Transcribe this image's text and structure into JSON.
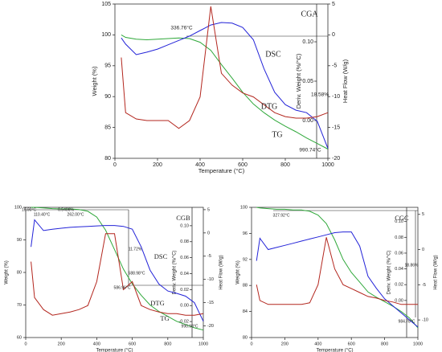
{
  "chart_data": [
    {
      "type": "line",
      "title": "CGA",
      "xlabel": "Temperature (°C)",
      "ylabel": "Weight (%)",
      "y2label": "Heat Flow (W/g)",
      "y3label": "Deriv. Weight (%/°C)",
      "x": [
        30,
        50,
        100,
        150,
        200,
        250,
        300,
        350,
        400,
        450,
        500,
        550,
        600,
        650,
        700,
        750,
        800,
        850,
        900,
        950,
        1000
      ],
      "xlim": [
        0,
        1000
      ],
      "xticks": [
        0,
        200,
        400,
        600,
        800,
        1000
      ],
      "ylim": [
        80,
        105
      ],
      "yticks": [
        80,
        85,
        90,
        95,
        100,
        105
      ],
      "y2lim": [
        -20,
        5
      ],
      "y2ticks": [
        5,
        0,
        -5,
        -10,
        -15,
        -20
      ],
      "y3lim": [
        -0.048,
        0.148
      ],
      "y3ticks": [
        {
          "value": 0.1,
          "label": "0.10"
        },
        {
          "value": 0.05,
          "label": "0.05"
        },
        {
          "value": 0,
          "label": "0.00"
        }
      ],
      "series": [
        {
          "name": "TG",
          "color": "#2fa83a",
          "axis": "y",
          "values": [
            100,
            99.6,
            99.3,
            99.2,
            99.3,
            99.4,
            99.5,
            99.4,
            98.8,
            97.5,
            95.2,
            93,
            90.7,
            88.8,
            87.4,
            86.2,
            85.2,
            84.3,
            83.3,
            82.4,
            81.5
          ]
        },
        {
          "name": "DSC",
          "color": "#2323d8",
          "axis": "y2",
          "values": [
            -0.5,
            -1.5,
            -3.2,
            -2.8,
            -2.3,
            -1.6,
            -0.9,
            -0.2,
            0.7,
            1.6,
            2.0,
            1.9,
            1.2,
            -0.8,
            -5.5,
            -9.3,
            -11.3,
            -12.2,
            -12.6,
            -14,
            -18.4
          ]
        },
        {
          "name": "DTG",
          "color": "#b3261e",
          "axis": "y3",
          "values": [
            0.08,
            0.01,
            0.002,
            0,
            0,
            0,
            -0.01,
            0,
            0.03,
            0.145,
            0.06,
            0.045,
            0.035,
            0.03,
            0.02,
            0.01,
            0.005,
            0.003,
            0.003,
            0.005,
            0.01
          ]
        }
      ],
      "annotations": [
        "336.76°C",
        "18.58%",
        "990.74°C"
      ]
    },
    {
      "type": "line",
      "title": "CGB",
      "xlabel": "Temperature (°C)",
      "ylabel": "Weight (%)",
      "y2label": "Heat Flow (W/g)",
      "y3label": "Deriv. Weight (%/°C)",
      "x": [
        30,
        50,
        100,
        150,
        200,
        250,
        300,
        350,
        400,
        450,
        500,
        550,
        600,
        650,
        700,
        750,
        800,
        850,
        900,
        950,
        1000
      ],
      "xlim": [
        0,
        1000
      ],
      "xticks": [
        0,
        200,
        400,
        600,
        800,
        1000
      ],
      "ylim": [
        60,
        100
      ],
      "yticks": [
        60,
        70,
        80,
        90,
        100
      ],
      "y2lim": [
        -22.5,
        5.5
      ],
      "y2ticks": [
        5,
        0,
        -5,
        -10,
        -15,
        -20
      ],
      "y3lim": [
        -0.04,
        0.123
      ],
      "y3ticks": [
        {
          "value": 0.1,
          "label": "0.10"
        },
        {
          "value": 0.08,
          "label": "0.08"
        },
        {
          "value": 0.06,
          "label": "0.06"
        },
        {
          "value": 0.04,
          "label": "0.04"
        },
        {
          "value": 0.02,
          "label": "0.02"
        },
        {
          "value": 0,
          "label": "0.00"
        },
        {
          "value": -0.02,
          "label": "-0.02"
        }
      ],
      "series": [
        {
          "name": "TG",
          "color": "#2fa83a",
          "axis": "y",
          "values": [
            100,
            100,
            99.8,
            99.6,
            99.5,
            99.5,
            99.3,
            98.8,
            97,
            93,
            87,
            81,
            76.5,
            73,
            70,
            68,
            66.5,
            65,
            64,
            63,
            62.3
          ]
        },
        {
          "name": "DSC",
          "color": "#2323d8",
          "axis": "y2",
          "values": [
            -3,
            2.8,
            0.5,
            0.8,
            1.0,
            1.2,
            1.3,
            1.4,
            1.5,
            1.6,
            1.6,
            1.4,
            0.8,
            -3,
            -8,
            -11,
            -12.5,
            -13,
            -13.6,
            -15,
            -19
          ]
        },
        {
          "name": "DTG",
          "color": "#b3261e",
          "axis": "y3",
          "values": [
            0.055,
            0.01,
            -0.005,
            -0.012,
            -0.01,
            -0.008,
            -0.005,
            0,
            0.03,
            0.09,
            0.09,
            0.02,
            0.03,
            0,
            -0.005,
            -0.008,
            -0.01,
            -0.01,
            -0.012,
            -0.012,
            -0.01
          ]
        }
      ],
      "annotations": [
        "16.90°C",
        "0.5406%",
        "110.40°C",
        "262.00°C",
        "11.72%",
        "588.98°C",
        "586.96°C",
        "990.98°C"
      ]
    },
    {
      "type": "line",
      "title": "CGC",
      "xlabel": "Temperature (°C)",
      "ylabel": "Weight (%)",
      "y2label": "Heat Flow (W/g)",
      "y3label": "Deriv. Weight (%/°C)",
      "x": [
        30,
        50,
        100,
        150,
        200,
        250,
        300,
        350,
        400,
        450,
        500,
        550,
        600,
        650,
        700,
        750,
        800,
        850,
        900,
        950,
        1000
      ],
      "xlim": [
        0,
        1000
      ],
      "xticks": [
        0,
        200,
        400,
        600,
        800,
        1000
      ],
      "ylim": [
        80,
        100
      ],
      "yticks": [
        80,
        84,
        88,
        92,
        96,
        100
      ],
      "y2lim": [
        -12.5,
        6
      ],
      "y2ticks": [
        5,
        0,
        -5,
        -10
      ],
      "y3lim": [
        -0.047,
        0.118
      ],
      "y3ticks": [
        {
          "value": 0.1,
          "label": "0.10"
        },
        {
          "value": 0.08,
          "label": "0.08"
        },
        {
          "value": 0.06,
          "label": "0.06"
        },
        {
          "value": 0.04,
          "label": "0.04"
        },
        {
          "value": 0.02,
          "label": "0.02"
        },
        {
          "value": 0,
          "label": "0.00"
        }
      ],
      "series": [
        {
          "color": "#2fa83a",
          "axis": "y",
          "values": [
            100,
            99.9,
            99.8,
            99.7,
            99.7,
            99.6,
            99.6,
            99.4,
            98.8,
            97.5,
            95,
            92,
            90,
            88.5,
            87,
            86.2,
            85.5,
            84.8,
            84,
            83,
            81.5
          ]
        },
        {
          "color": "#2323d8",
          "axis": "y2",
          "values": [
            -1.6,
            1.6,
            0,
            0.3,
            0.6,
            0.9,
            1.2,
            1.5,
            1.8,
            2.1,
            2.4,
            2.5,
            2.5,
            0.5,
            -3.8,
            -5.5,
            -7,
            -8,
            -9,
            -10,
            -11
          ]
        },
        {
          "color": "#b3261e",
          "axis": "y3",
          "values": [
            0.02,
            0,
            -0.005,
            -0.005,
            -0.005,
            -0.005,
            -0.005,
            -0.003,
            0.02,
            0.08,
            0.04,
            0.02,
            0.015,
            0.01,
            0.005,
            0.003,
            0,
            -0.002,
            -0.005,
            -0.005,
            -0.005
          ]
        }
      ],
      "annotations": [
        "327.92°C",
        "18.86%",
        "984.78°C"
      ]
    }
  ]
}
